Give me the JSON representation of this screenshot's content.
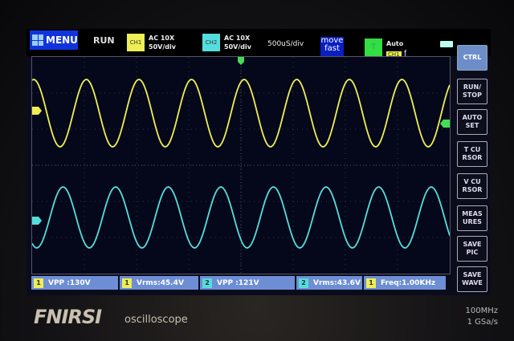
{
  "topbar": {
    "menu": "MENU",
    "run_state": "RUN",
    "ch1": {
      "badge": "CH1",
      "coupling": "AC  10X",
      "scale": "50V/div",
      "color": "#eeee55"
    },
    "ch2": {
      "badge": "CH2",
      "coupling": "AC  10X",
      "scale": "50V/div",
      "color": "#55dddd"
    },
    "timebase": "500uS/div",
    "move_mode": [
      "move",
      "fast"
    ],
    "trigger": {
      "badge": "T",
      "mode": "Auto",
      "source": "CH1",
      "edge": "ƒ"
    }
  },
  "sidebar": [
    "CTRL",
    "RUN/ STOP",
    "AUTO SET",
    "T CU RSOR",
    "V CU RSOR",
    "MEAS URES",
    "SAVE PIC",
    "SAVE WAVE"
  ],
  "measurements": [
    {
      "ch": "1",
      "label": "VPP :130V"
    },
    {
      "ch": "1",
      "label": "Vrms:45.4V"
    },
    {
      "ch": "2",
      "label": "VPP :121V"
    },
    {
      "ch": "2",
      "label": "Vrms:43.6V"
    },
    {
      "ch": "1",
      "label": "Freq:1.00KHz"
    }
  ],
  "markers": {
    "ch1": "1",
    "ch2": "2"
  },
  "brand": {
    "logo": "FNIRSI",
    "subtitle": "oscilloscope",
    "bandwidth": "100MHz",
    "sample_rate": "1  GSa/s"
  }
}
